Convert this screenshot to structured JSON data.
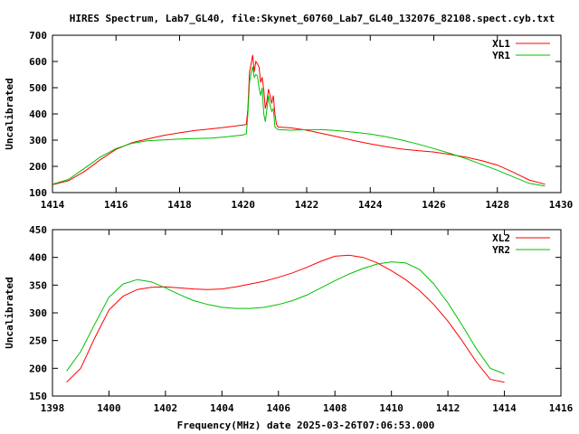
{
  "title": "HIRES Spectrum, Lab7_GL40, file:Skynet_60760_Lab7_GL40_132076_82108.spect.cyb.txt",
  "footer": "Frequency(MHz) date 2025-03-26T07:06:53.000",
  "chart_data": [
    {
      "type": "line",
      "ylabel": "Uncalibrated",
      "xlim": [
        1414,
        1430
      ],
      "ylim": [
        100,
        700
      ],
      "xticks": [
        "1414",
        "1416",
        "1418",
        "1420",
        "1422",
        "1424",
        "1426",
        "1428",
        "1430"
      ],
      "yticks": [
        "100",
        "200",
        "300",
        "400",
        "500",
        "600",
        "700"
      ],
      "legend": "top-right",
      "series": [
        {
          "name": "XL1",
          "color": "#ff0000",
          "points": [
            [
              1414.0,
              130
            ],
            [
              1414.5,
              145
            ],
            [
              1415.0,
              180
            ],
            [
              1415.5,
              225
            ],
            [
              1416.0,
              265
            ],
            [
              1416.5,
              290
            ],
            [
              1417.0,
              305
            ],
            [
              1417.5,
              318
            ],
            [
              1418.0,
              328
            ],
            [
              1418.5,
              337
            ],
            [
              1419.0,
              343
            ],
            [
              1419.5,
              350
            ],
            [
              1420.0,
              358
            ],
            [
              1420.1,
              360
            ],
            [
              1420.15,
              420
            ],
            [
              1420.2,
              560
            ],
            [
              1420.25,
              590
            ],
            [
              1420.3,
              625
            ],
            [
              1420.35,
              560
            ],
            [
              1420.4,
              600
            ],
            [
              1420.45,
              590
            ],
            [
              1420.5,
              580
            ],
            [
              1420.55,
              520
            ],
            [
              1420.6,
              540
            ],
            [
              1420.65,
              490
            ],
            [
              1420.7,
              420
            ],
            [
              1420.75,
              450
            ],
            [
              1420.8,
              495
            ],
            [
              1420.85,
              470
            ],
            [
              1420.9,
              440
            ],
            [
              1420.95,
              470
            ],
            [
              1421.0,
              400
            ],
            [
              1421.05,
              360
            ],
            [
              1421.1,
              350
            ],
            [
              1421.5,
              347
            ],
            [
              1422.0,
              338
            ],
            [
              1422.5,
              325
            ],
            [
              1423.0,
              312
            ],
            [
              1423.5,
              298
            ],
            [
              1424.0,
              286
            ],
            [
              1424.5,
              275
            ],
            [
              1425.0,
              266
            ],
            [
              1425.5,
              260
            ],
            [
              1426.0,
              255
            ],
            [
              1426.5,
              246
            ],
            [
              1427.0,
              235
            ],
            [
              1427.5,
              222
            ],
            [
              1428.0,
              205
            ],
            [
              1428.5,
              178
            ],
            [
              1429.0,
              148
            ],
            [
              1429.5,
              132
            ]
          ]
        },
        {
          "name": "YR1",
          "color": "#00c000",
          "points": [
            [
              1414.0,
              132
            ],
            [
              1414.5,
              150
            ],
            [
              1415.0,
              192
            ],
            [
              1415.5,
              235
            ],
            [
              1416.0,
              268
            ],
            [
              1416.5,
              288
            ],
            [
              1417.0,
              298
            ],
            [
              1417.5,
              301
            ],
            [
              1418.0,
              304
            ],
            [
              1418.5,
              306
            ],
            [
              1419.0,
              308
            ],
            [
              1419.5,
              313
            ],
            [
              1420.0,
              320
            ],
            [
              1420.1,
              325
            ],
            [
              1420.15,
              400
            ],
            [
              1420.2,
              520
            ],
            [
              1420.25,
              555
            ],
            [
              1420.3,
              580
            ],
            [
              1420.35,
              540
            ],
            [
              1420.4,
              550
            ],
            [
              1420.45,
              545
            ],
            [
              1420.5,
              500
            ],
            [
              1420.55,
              470
            ],
            [
              1420.6,
              500
            ],
            [
              1420.65,
              400
            ],
            [
              1420.7,
              370
            ],
            [
              1420.75,
              420
            ],
            [
              1420.8,
              470
            ],
            [
              1420.85,
              430
            ],
            [
              1420.9,
              410
            ],
            [
              1420.95,
              420
            ],
            [
              1421.0,
              350
            ],
            [
              1421.1,
              340
            ],
            [
              1421.5,
              338
            ],
            [
              1422.0,
              340
            ],
            [
              1422.5,
              340
            ],
            [
              1423.0,
              336
            ],
            [
              1423.5,
              330
            ],
            [
              1424.0,
              323
            ],
            [
              1424.5,
              313
            ],
            [
              1425.0,
              300
            ],
            [
              1425.5,
              285
            ],
            [
              1426.0,
              268
            ],
            [
              1426.5,
              250
            ],
            [
              1427.0,
              230
            ],
            [
              1427.5,
              208
            ],
            [
              1428.0,
              185
            ],
            [
              1428.5,
              160
            ],
            [
              1429.0,
              135
            ],
            [
              1429.5,
              125
            ]
          ]
        }
      ]
    },
    {
      "type": "line",
      "ylabel": "Uncalibrated",
      "xlim": [
        1398,
        1416
      ],
      "ylim": [
        150,
        450
      ],
      "xticks": [
        "1398",
        "1400",
        "1402",
        "1404",
        "1406",
        "1408",
        "1410",
        "1412",
        "1414",
        "1416"
      ],
      "yticks": [
        "150",
        "200",
        "250",
        "300",
        "350",
        "400",
        "450"
      ],
      "legend": "top-right",
      "series": [
        {
          "name": "XL2",
          "color": "#ff0000",
          "points": [
            [
              1398.5,
              175
            ],
            [
              1399.0,
              200
            ],
            [
              1399.5,
              255
            ],
            [
              1400.0,
              305
            ],
            [
              1400.5,
              330
            ],
            [
              1401.0,
              342
            ],
            [
              1401.5,
              346
            ],
            [
              1402.0,
              347
            ],
            [
              1402.5,
              345
            ],
            [
              1403.0,
              343
            ],
            [
              1403.5,
              342
            ],
            [
              1404.0,
              343
            ],
            [
              1404.5,
              347
            ],
            [
              1405.0,
              352
            ],
            [
              1405.5,
              357
            ],
            [
              1406.0,
              364
            ],
            [
              1406.5,
              372
            ],
            [
              1407.0,
              382
            ],
            [
              1407.5,
              393
            ],
            [
              1408.0,
              402
            ],
            [
              1408.5,
              404
            ],
            [
              1409.0,
              400
            ],
            [
              1409.5,
              390
            ],
            [
              1410.0,
              376
            ],
            [
              1410.5,
              360
            ],
            [
              1411.0,
              340
            ],
            [
              1411.5,
              315
            ],
            [
              1412.0,
              285
            ],
            [
              1412.5,
              250
            ],
            [
              1413.0,
              212
            ],
            [
              1413.5,
              180
            ],
            [
              1414.0,
              175
            ]
          ]
        },
        {
          "name": "YR2",
          "color": "#00c000",
          "points": [
            [
              1398.5,
              195
            ],
            [
              1399.0,
              230
            ],
            [
              1399.5,
              280
            ],
            [
              1400.0,
              328
            ],
            [
              1400.5,
              352
            ],
            [
              1401.0,
              360
            ],
            [
              1401.5,
              356
            ],
            [
              1402.0,
              345
            ],
            [
              1402.5,
              333
            ],
            [
              1403.0,
              322
            ],
            [
              1403.5,
              315
            ],
            [
              1404.0,
              310
            ],
            [
              1404.5,
              308
            ],
            [
              1405.0,
              308
            ],
            [
              1405.5,
              310
            ],
            [
              1406.0,
              315
            ],
            [
              1406.5,
              322
            ],
            [
              1407.0,
              332
            ],
            [
              1407.5,
              345
            ],
            [
              1408.0,
              358
            ],
            [
              1408.5,
              370
            ],
            [
              1409.0,
              380
            ],
            [
              1409.5,
              388
            ],
            [
              1410.0,
              392
            ],
            [
              1410.5,
              390
            ],
            [
              1411.0,
              378
            ],
            [
              1411.5,
              352
            ],
            [
              1412.0,
              318
            ],
            [
              1412.5,
              278
            ],
            [
              1413.0,
              236
            ],
            [
              1413.5,
              200
            ],
            [
              1414.0,
              190
            ]
          ]
        }
      ]
    }
  ]
}
